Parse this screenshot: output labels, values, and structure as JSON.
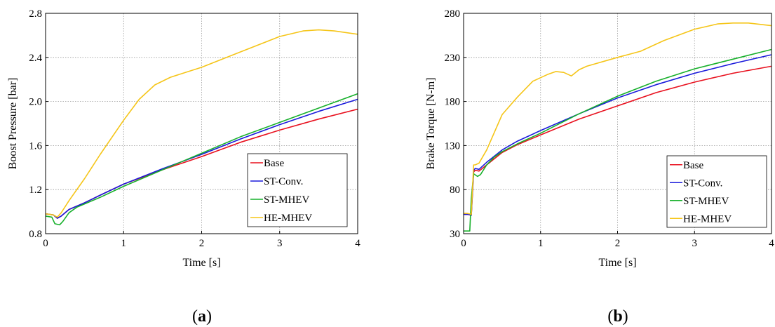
{
  "chart_data": [
    {
      "type": "line",
      "title": "",
      "xlabel": "Time [s]",
      "ylabel": "Boost Pressure [bar]",
      "xlim": [
        0,
        4
      ],
      "ylim": [
        0.8,
        2.8
      ],
      "xticks": [
        "0",
        "1",
        "2",
        "3",
        "4"
      ],
      "yticks": [
        "0.8",
        "1.2",
        "1.6",
        "2.0",
        "2.4",
        "2.8"
      ],
      "grid": true,
      "legend_position": "bottom-right",
      "caption_prefix": "(",
      "caption_letter": "a",
      "caption_suffix": ")",
      "series": [
        {
          "name": "Base",
          "color": "#e8101e",
          "x": [
            0,
            0.1,
            0.15,
            0.2,
            0.3,
            0.5,
            0.7,
            1.0,
            1.5,
            2.0,
            2.5,
            3.0,
            3.5,
            4.0
          ],
          "y": [
            0.98,
            0.97,
            0.94,
            0.96,
            1.02,
            1.08,
            1.15,
            1.25,
            1.38,
            1.5,
            1.63,
            1.74,
            1.84,
            1.93
          ]
        },
        {
          "name": "ST-Conv.",
          "color": "#1a1adb",
          "x": [
            0,
            0.1,
            0.15,
            0.2,
            0.3,
            0.5,
            0.7,
            1.0,
            1.5,
            2.0,
            2.5,
            3.0,
            3.5,
            4.0
          ],
          "y": [
            0.98,
            0.97,
            0.94,
            0.96,
            1.02,
            1.08,
            1.15,
            1.25,
            1.39,
            1.52,
            1.66,
            1.79,
            1.91,
            2.02
          ]
        },
        {
          "name": "ST-MHEV",
          "color": "#17b02b",
          "x": [
            0,
            0.08,
            0.12,
            0.18,
            0.22,
            0.3,
            0.4,
            0.5,
            0.7,
            1.0,
            1.5,
            2.0,
            2.5,
            3.0,
            3.5,
            4.0
          ],
          "y": [
            0.96,
            0.95,
            0.89,
            0.88,
            0.91,
            0.99,
            1.04,
            1.07,
            1.13,
            1.23,
            1.38,
            1.53,
            1.68,
            1.81,
            1.94,
            2.07
          ]
        },
        {
          "name": "HE-MHEV",
          "color": "#f5c518",
          "x": [
            0,
            0.1,
            0.15,
            0.2,
            0.3,
            0.5,
            0.7,
            1.0,
            1.2,
            1.4,
            1.6,
            2.0,
            2.5,
            3.0,
            3.3,
            3.5,
            3.7,
            4.0
          ],
          "y": [
            0.98,
            0.97,
            0.95,
            0.99,
            1.1,
            1.3,
            1.52,
            1.83,
            2.02,
            2.15,
            2.22,
            2.31,
            2.45,
            2.59,
            2.64,
            2.65,
            2.64,
            2.61
          ]
        }
      ]
    },
    {
      "type": "line",
      "title": "",
      "xlabel": "Time [s]",
      "ylabel": "Brake Torque [N-m]",
      "xlim": [
        0,
        4
      ],
      "ylim": [
        30,
        280
      ],
      "xticks": [
        "0",
        "1",
        "2",
        "3",
        "4"
      ],
      "yticks": [
        "30",
        "80",
        "130",
        "180",
        "230",
        "280"
      ],
      "grid": true,
      "legend_position": "bottom-right",
      "caption_prefix": "(",
      "caption_letter": "b",
      "caption_suffix": ")",
      "series": [
        {
          "name": "Base",
          "color": "#e8101e",
          "x": [
            0,
            0.05,
            0.1,
            0.13,
            0.15,
            0.2,
            0.3,
            0.5,
            0.7,
            1.0,
            1.5,
            2.0,
            2.5,
            3.0,
            3.5,
            4.0
          ],
          "y": [
            52,
            52,
            51,
            100,
            102,
            101,
            108,
            122,
            131,
            142,
            160,
            175,
            190,
            202,
            212,
            220
          ]
        },
        {
          "name": "ST-Conv.",
          "color": "#1a1adb",
          "x": [
            0,
            0.05,
            0.1,
            0.13,
            0.15,
            0.2,
            0.3,
            0.5,
            0.7,
            1.0,
            1.5,
            2.0,
            2.5,
            3.0,
            3.5,
            4.0
          ],
          "y": [
            52,
            52,
            51,
            102,
            104,
            103,
            111,
            125,
            135,
            147,
            166,
            184,
            199,
            212,
            223,
            233
          ]
        },
        {
          "name": "ST-MHEV",
          "color": "#17b02b",
          "x": [
            0,
            0.05,
            0.08,
            0.1,
            0.13,
            0.18,
            0.22,
            0.3,
            0.4,
            0.5,
            0.7,
            1.0,
            1.5,
            2.0,
            2.5,
            3.0,
            3.5,
            4.0
          ],
          "y": [
            33,
            33,
            33,
            70,
            98,
            95,
            97,
            108,
            117,
            123,
            132,
            144,
            166,
            186,
            203,
            217,
            228,
            239
          ]
        },
        {
          "name": "HE-MHEV",
          "color": "#f5c518",
          "x": [
            0,
            0.05,
            0.1,
            0.13,
            0.15,
            0.2,
            0.3,
            0.5,
            0.7,
            0.9,
            1.0,
            1.1,
            1.2,
            1.3,
            1.4,
            1.5,
            1.6,
            2.0,
            2.3,
            2.6,
            3.0,
            3.3,
            3.5,
            3.7,
            4.0
          ],
          "y": [
            53,
            53,
            52,
            108,
            108,
            110,
            125,
            165,
            185,
            203,
            207,
            211,
            214,
            213,
            209,
            216,
            220,
            230,
            237,
            249,
            262,
            268,
            269,
            269,
            266
          ]
        }
      ]
    }
  ]
}
